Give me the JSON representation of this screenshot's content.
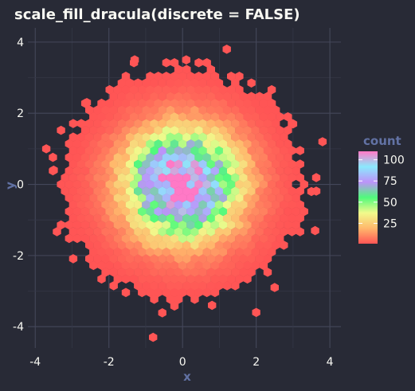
{
  "chart_data": {
    "type": "heatmap",
    "subtype": "hexbin",
    "title": "scale_fill_dracula(discrete = FALSE)",
    "xlabel": "x",
    "ylabel": "y",
    "xlim": [
      -4.2,
      4.3
    ],
    "ylim": [
      -4.6,
      4.4
    ],
    "x_ticks": [
      "-4",
      "-2",
      "0",
      "2",
      "4"
    ],
    "y_ticks": [
      "-4",
      "-2",
      "0",
      "2",
      "4"
    ],
    "grid": true,
    "background_color": "#282A36",
    "legend": {
      "title": "count",
      "position": "right",
      "range": [
        1,
        110
      ],
      "ticks": [
        "25",
        "50",
        "75",
        "100"
      ],
      "colors": [
        "#FF5555",
        "#FFB86C",
        "#F1FA8C",
        "#50FA7B",
        "#BD93F9",
        "#8BE9FD",
        "#FF79C6"
      ]
    },
    "distribution": {
      "center_x": 0,
      "center_y": 0,
      "sd": 1,
      "peak_count": 110
    },
    "outlier_points": [
      {
        "x": -0.8,
        "y": -4.3
      },
      {
        "x": 1.2,
        "y": 3.8
      },
      {
        "x": 3.8,
        "y": 1.2
      },
      {
        "x": -3.7,
        "y": 1.0
      },
      {
        "x": 0.1,
        "y": 3.5
      },
      {
        "x": -1.3,
        "y": 3.5
      },
      {
        "x": 2.0,
        "y": -3.6
      },
      {
        "x": 0.8,
        "y": -3.4
      },
      {
        "x": 3.6,
        "y": -1.3
      },
      {
        "x": -3.5,
        "y": 0.4
      },
      {
        "x": 3.5,
        "y": -0.2
      },
      {
        "x": 2.5,
        "y": -2.9
      },
      {
        "x": 3.0,
        "y": 1.7
      },
      {
        "x": -2.6,
        "y": 2.3
      }
    ]
  }
}
